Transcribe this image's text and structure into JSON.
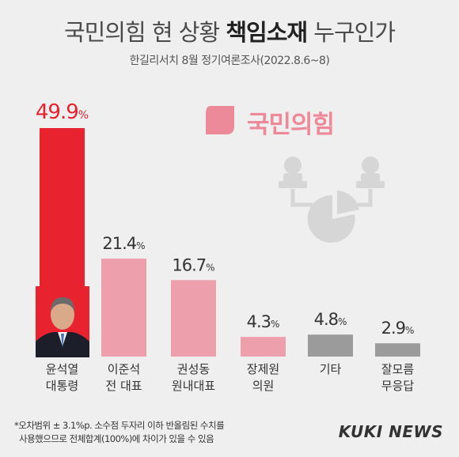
{
  "header": {
    "title_prefix": "국민의힘 현 상황 ",
    "title_bold": "책임소재",
    "title_suffix": " 누구인가",
    "subtitle": "한길리서치 8월 정기여론조사(2022.8.6~8)"
  },
  "logo": {
    "text": "국민의힘",
    "color": "#ec8a99"
  },
  "chart_data": {
    "type": "bar",
    "categories": [
      [
        "윤석열",
        "대통령"
      ],
      [
        "이준석",
        "전 대표"
      ],
      [
        "권성동",
        "원내대표"
      ],
      [
        "장제원",
        "의원"
      ],
      [
        "기타"
      ],
      [
        "잘모름",
        "무응답"
      ]
    ],
    "values": [
      49.9,
      21.4,
      16.7,
      4.3,
      4.8,
      2.9
    ],
    "value_labels": [
      "49.9",
      "21.4",
      "16.7",
      "4.3",
      "4.8",
      "2.9"
    ],
    "unit": "%",
    "colors": [
      "#e8232f",
      "#eda0ac",
      "#eda0ac",
      "#eda0ac",
      "#9b9b9b",
      "#9b9b9b"
    ],
    "label_colors": [
      "#e8232f",
      "#333333",
      "#333333",
      "#333333",
      "#333333",
      "#333333"
    ],
    "ylim": [
      0,
      49.9
    ]
  },
  "footnote": {
    "line1": "*오차범위 ± 3.1%p. 소수점 두자리 이하 반올림된 수치를",
    "line2": "사용했으므로 전체합계(100%)에 차이가 있을 수 있음"
  },
  "brand": "KUKI NEWS"
}
